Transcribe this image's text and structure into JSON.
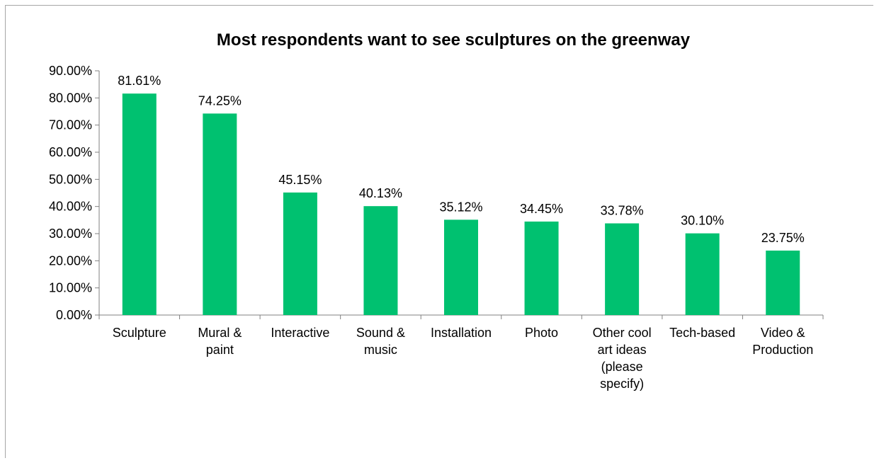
{
  "chart_data": {
    "type": "bar",
    "title": "Most respondents want to see sculptures on the greenway",
    "xlabel": "",
    "ylabel": "",
    "categories": [
      "Sculpture",
      "Mural & paint",
      "Interactive",
      "Sound & music",
      "Installation",
      "Photo",
      "Other cool art ideas (please specify)",
      "Tech-based",
      "Video & Production"
    ],
    "category_lines": [
      [
        "Sculpture"
      ],
      [
        "Mural &",
        "paint"
      ],
      [
        "Interactive"
      ],
      [
        "Sound &",
        "music"
      ],
      [
        "Installation"
      ],
      [
        "Photo"
      ],
      [
        "Other cool",
        "art ideas",
        "(please",
        "specify)"
      ],
      [
        "Tech-based"
      ],
      [
        "Video &",
        "Production"
      ]
    ],
    "values": [
      81.61,
      74.25,
      45.15,
      40.13,
      35.12,
      34.45,
      33.78,
      30.1,
      23.75
    ],
    "value_labels": [
      "81.61%",
      "74.25%",
      "45.15%",
      "40.13%",
      "35.12%",
      "34.45%",
      "33.78%",
      "30.10%",
      "23.75%"
    ],
    "y_ticks": [
      0,
      10,
      20,
      30,
      40,
      50,
      60,
      70,
      80,
      90
    ],
    "y_tick_labels": [
      "0.00%",
      "10.00%",
      "20.00%",
      "30.00%",
      "40.00%",
      "50.00%",
      "60.00%",
      "70.00%",
      "80.00%",
      "90.00%"
    ],
    "ylim": [
      0,
      90
    ],
    "grid": false,
    "legend": "none",
    "bar_color": "#00c170"
  }
}
